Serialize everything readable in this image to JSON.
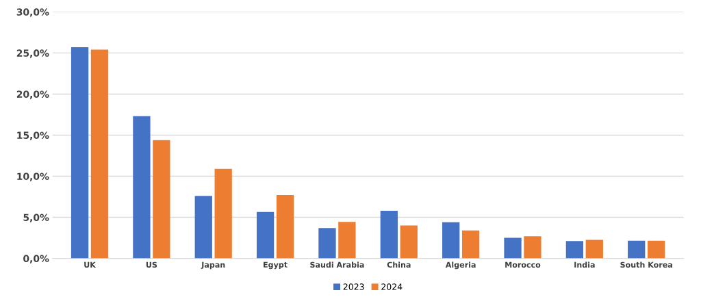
{
  "chart_data": {
    "type": "bar",
    "categories": [
      "UK",
      "US",
      "Japan",
      "Egypt",
      "Saudi Arabia",
      "China",
      "Algeria",
      "Morocco",
      "India",
      "South Korea"
    ],
    "series": [
      {
        "name": "2023",
        "color": "#4472c4",
        "values": [
          25.7,
          17.3,
          7.6,
          5.65,
          3.7,
          5.8,
          4.4,
          2.5,
          2.1,
          2.15
        ]
      },
      {
        "name": "2024",
        "color": "#ed7d31",
        "values": [
          25.4,
          14.4,
          10.9,
          7.7,
          4.45,
          4.0,
          3.4,
          2.7,
          2.25,
          2.15
        ]
      }
    ],
    "ylim": [
      0,
      30
    ],
    "yticks": [
      {
        "value": 0,
        "label": "0,0%"
      },
      {
        "value": 5,
        "label": "5,0%"
      },
      {
        "value": 10,
        "label": "10,0%"
      },
      {
        "value": 15,
        "label": "15,0%"
      },
      {
        "value": 20,
        "label": "20,0%"
      },
      {
        "value": 25,
        "label": "25,0%"
      },
      {
        "value": 30,
        "label": "30,0%"
      }
    ],
    "grid": "y",
    "legend": "bottom"
  }
}
